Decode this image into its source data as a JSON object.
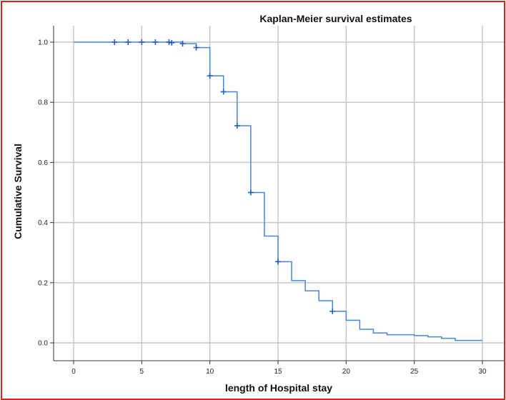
{
  "chart_data": {
    "type": "line",
    "title": "Kaplan-Meier survival estimates",
    "xlabel": "length of Hospital stay",
    "ylabel": "Cumulative Survival",
    "xlim": [
      0,
      30
    ],
    "ylim": [
      0,
      1
    ],
    "xticks": [
      "0",
      "5",
      "10",
      "15",
      "20",
      "25",
      "30"
    ],
    "yticks": [
      "0.0",
      "0.2",
      "0.4",
      "0.6",
      "0.8",
      "1.0"
    ],
    "grid": true,
    "legend": "none",
    "color": "#4a86d8",
    "step_points": [
      {
        "x": 0,
        "y": 1.0
      },
      {
        "x": 8,
        "y": 0.995
      },
      {
        "x": 9,
        "y": 0.982
      },
      {
        "x": 10,
        "y": 0.888
      },
      {
        "x": 11,
        "y": 0.835
      },
      {
        "x": 12,
        "y": 0.722
      },
      {
        "x": 13,
        "y": 0.5
      },
      {
        "x": 14,
        "y": 0.355
      },
      {
        "x": 15,
        "y": 0.27
      },
      {
        "x": 16,
        "y": 0.207
      },
      {
        "x": 17,
        "y": 0.173
      },
      {
        "x": 18,
        "y": 0.14
      },
      {
        "x": 19,
        "y": 0.105
      },
      {
        "x": 20,
        "y": 0.075
      },
      {
        "x": 21,
        "y": 0.045
      },
      {
        "x": 22,
        "y": 0.033
      },
      {
        "x": 23,
        "y": 0.027
      },
      {
        "x": 25,
        "y": 0.024
      },
      {
        "x": 26,
        "y": 0.02
      },
      {
        "x": 27,
        "y": 0.015
      },
      {
        "x": 28,
        "y": 0.008
      },
      {
        "x": 30,
        "y": 0.008
      }
    ],
    "censored": [
      {
        "x": 3,
        "y": 1.0
      },
      {
        "x": 4,
        "y": 1.0
      },
      {
        "x": 5,
        "y": 1.0
      },
      {
        "x": 6,
        "y": 1.0
      },
      {
        "x": 7,
        "y": 1.0
      },
      {
        "x": 7.2,
        "y": 0.998
      },
      {
        "x": 8,
        "y": 0.995
      },
      {
        "x": 9,
        "y": 0.982
      },
      {
        "x": 10,
        "y": 0.888
      },
      {
        "x": 11,
        "y": 0.835
      },
      {
        "x": 12,
        "y": 0.722
      },
      {
        "x": 13,
        "y": 0.5
      },
      {
        "x": 15,
        "y": 0.27
      },
      {
        "x": 19,
        "y": 0.105
      }
    ]
  }
}
